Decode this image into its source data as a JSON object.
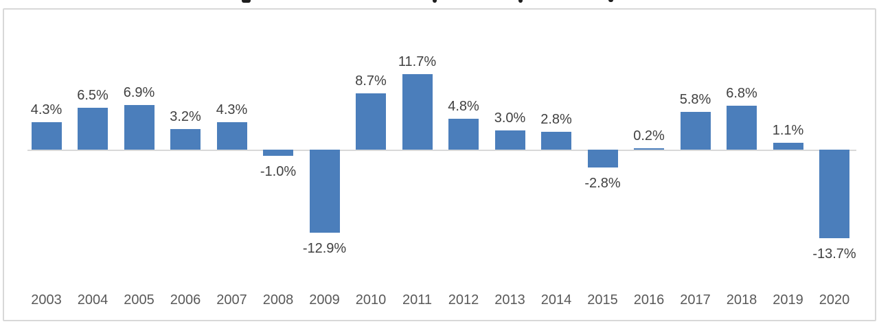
{
  "chart_data": {
    "type": "bar",
    "categories": [
      "2003",
      "2004",
      "2005",
      "2006",
      "2007",
      "2008",
      "2009",
      "2010",
      "2011",
      "2012",
      "2013",
      "2014",
      "2015",
      "2016",
      "2017",
      "2018",
      "2019",
      "2020"
    ],
    "values": [
      4.3,
      6.5,
      6.9,
      3.2,
      4.3,
      -1.0,
      -12.9,
      8.7,
      11.7,
      4.8,
      3.0,
      2.8,
      -2.8,
      0.2,
      5.8,
      6.8,
      1.1,
      -13.7
    ],
    "value_labels": [
      "4.3%",
      "6.5%",
      "6.9%",
      "3.2%",
      "4.3%",
      "-1.0%",
      "-12.9%",
      "8.7%",
      "11.7%",
      "4.8%",
      "3.0%",
      "2.8%",
      "-2.8%",
      "0.2%",
      "5.8%",
      "6.8%",
      "1.1%",
      "-13.7%"
    ],
    "xlabel": "",
    "ylabel": "",
    "unit": "%",
    "ylim": [
      -15,
      13
    ],
    "grid": false,
    "legend_position": "none",
    "data_labels_on": true,
    "colors": {
      "bar": "#4B7EBB",
      "value_label": "#404040",
      "tick_label": "#595959",
      "axis_line": "#D9D9D9",
      "frame_border": "#D8D8D8"
    }
  }
}
